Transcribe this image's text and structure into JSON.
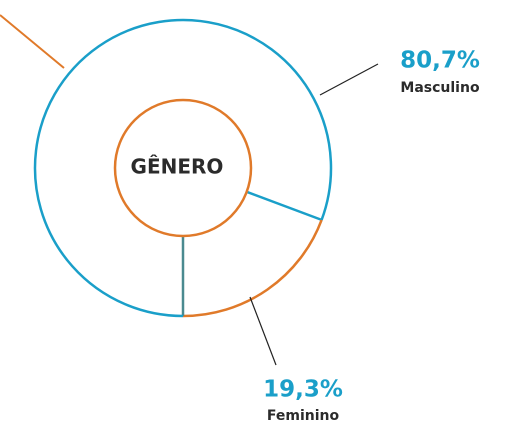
{
  "chart_data": {
    "type": "donut",
    "title": "GÊNERO",
    "categories": [
      "Masculino",
      "Feminino"
    ],
    "values": [
      80.7,
      19.3
    ],
    "value_labels": [
      "80,7%",
      "19,3%"
    ],
    "colors": [
      "#1a9fc9",
      "#e07a2a"
    ]
  }
}
